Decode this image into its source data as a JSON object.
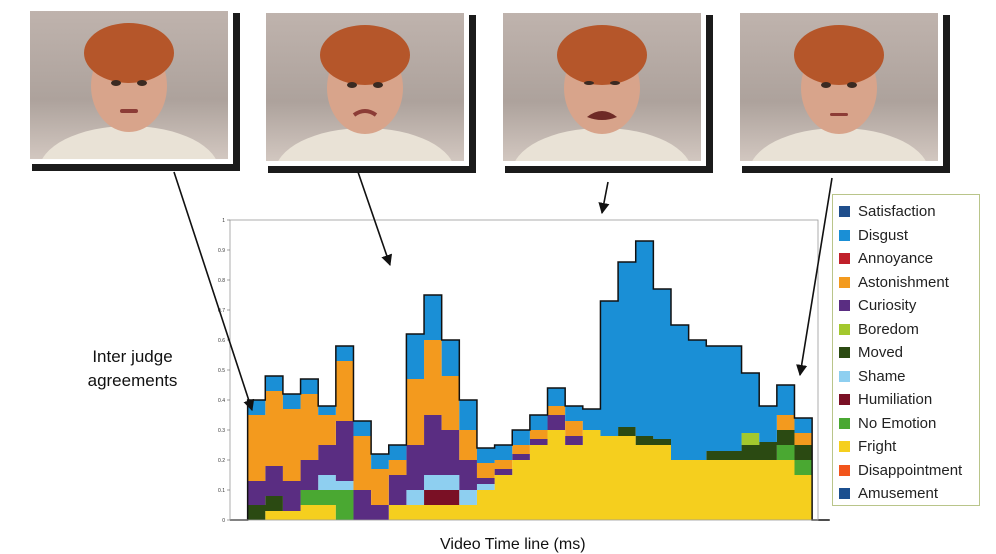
{
  "side_label": {
    "line1": "Inter judge",
    "line2": "agreements"
  },
  "x_axis_label": "Video Time line (ms)",
  "photos": [
    {
      "icon": "face-photo-icon"
    },
    {
      "icon": "face-photo-icon"
    },
    {
      "icon": "face-photo-icon"
    },
    {
      "icon": "face-photo-icon"
    }
  ],
  "chart_data": {
    "type": "area",
    "stacked": true,
    "step": true,
    "ylim": [
      0,
      1
    ],
    "yticks": [
      "0",
      "0.1",
      "0.2",
      "0.3",
      "0.4",
      "0.5",
      "0.6",
      "0.7",
      "0.8",
      "0.9",
      "1"
    ],
    "xlabel": "Video Time line (ms)",
    "ylabel": "",
    "legend_position": "right",
    "x": [
      0,
      0.03,
      0.06,
      0.09,
      0.12,
      0.15,
      0.18,
      0.21,
      0.24,
      0.27,
      0.3,
      0.33,
      0.36,
      0.39,
      0.42,
      0.45,
      0.48,
      0.51,
      0.54,
      0.57,
      0.6,
      0.63,
      0.66,
      0.69,
      0.72,
      0.75,
      0.78,
      0.81,
      0.84,
      0.87,
      0.9,
      0.93,
      0.96,
      0.99
    ],
    "series": [
      {
        "name": "Satisfaction",
        "color": "#1f4e8c",
        "values": [
          0,
          0,
          0,
          0,
          0,
          0,
          0,
          0,
          0,
          0,
          0,
          0,
          0,
          0,
          0,
          0,
          0,
          0,
          0,
          0,
          0,
          0,
          0,
          0,
          0,
          0,
          0,
          0,
          0,
          0,
          0,
          0,
          0,
          0
        ]
      },
      {
        "name": "Disgust",
        "color": "#1a8fd6",
        "values": [
          0,
          0.05,
          0.05,
          0.05,
          0.05,
          0.03,
          0.05,
          0.05,
          0.05,
          0.05,
          0.15,
          0.15,
          0.12,
          0.1,
          0.05,
          0.05,
          0.05,
          0.05,
          0.06,
          0.05,
          0.07,
          0.45,
          0.55,
          0.65,
          0.5,
          0.45,
          0.4,
          0.35,
          0.35,
          0.2,
          0.12,
          0.1,
          0.05,
          0
        ]
      },
      {
        "name": "Annoyance",
        "color": "#c0202a",
        "values": [
          0,
          0,
          0,
          0,
          0,
          0,
          0,
          0,
          0,
          0,
          0,
          0,
          0,
          0,
          0,
          0,
          0,
          0,
          0,
          0,
          0,
          0,
          0,
          0,
          0,
          0,
          0,
          0,
          0,
          0,
          0,
          0,
          0,
          0
        ]
      },
      {
        "name": "Astonishment",
        "color": "#f39a1e",
        "values": [
          0,
          0.22,
          0.25,
          0.24,
          0.22,
          0.1,
          0.2,
          0.18,
          0.12,
          0.05,
          0.22,
          0.25,
          0.18,
          0.1,
          0.05,
          0.03,
          0.03,
          0.03,
          0.03,
          0.05,
          0,
          0,
          0,
          0,
          0,
          0,
          0,
          0,
          0,
          0,
          0,
          0.05,
          0.04,
          0
        ]
      },
      {
        "name": "Curiosity",
        "color": "#5a2d82",
        "values": [
          0,
          0.08,
          0.1,
          0.1,
          0.1,
          0.1,
          0.2,
          0.1,
          0.05,
          0.1,
          0.15,
          0.2,
          0.15,
          0.1,
          0.02,
          0.02,
          0.02,
          0.02,
          0.05,
          0.03,
          0,
          0,
          0,
          0,
          0,
          0,
          0,
          0,
          0,
          0,
          0,
          0,
          0,
          0
        ]
      },
      {
        "name": "Boredom",
        "color": "#a3c82e",
        "values": [
          0,
          0,
          0,
          0,
          0,
          0,
          0,
          0,
          0,
          0,
          0,
          0,
          0,
          0,
          0,
          0,
          0,
          0,
          0,
          0,
          0,
          0,
          0,
          0,
          0,
          0,
          0,
          0,
          0,
          0.04,
          0,
          0,
          0,
          0
        ]
      },
      {
        "name": "Moved",
        "color": "#2b4a12",
        "values": [
          0,
          0.05,
          0.05,
          0,
          0,
          0,
          0,
          0,
          0,
          0,
          0,
          0,
          0,
          0,
          0,
          0,
          0,
          0,
          0,
          0,
          0,
          0,
          0.03,
          0.03,
          0.02,
          0,
          0,
          0.03,
          0.03,
          0.05,
          0.06,
          0.05,
          0.05,
          0
        ]
      },
      {
        "name": "Shame",
        "color": "#8ecff0",
        "values": [
          0,
          0,
          0,
          0,
          0,
          0.05,
          0.03,
          0,
          0,
          0,
          0.05,
          0.05,
          0.05,
          0.05,
          0.02,
          0,
          0,
          0,
          0,
          0,
          0,
          0,
          0,
          0,
          0,
          0,
          0,
          0,
          0,
          0,
          0,
          0,
          0,
          0
        ]
      },
      {
        "name": "Humiliation",
        "color": "#7a1025",
        "values": [
          0,
          0,
          0,
          0,
          0,
          0,
          0,
          0,
          0,
          0,
          0,
          0.05,
          0.05,
          0,
          0,
          0,
          0,
          0,
          0,
          0,
          0,
          0,
          0,
          0,
          0,
          0,
          0,
          0,
          0,
          0,
          0,
          0,
          0,
          0
        ]
      },
      {
        "name": "No Emotion",
        "color": "#4aa832",
        "values": [
          0,
          0,
          0,
          0,
          0.05,
          0.05,
          0.1,
          0,
          0,
          0,
          0,
          0,
          0,
          0,
          0,
          0,
          0,
          0,
          0,
          0,
          0,
          0,
          0,
          0,
          0,
          0,
          0,
          0,
          0,
          0,
          0,
          0.05,
          0.05,
          0
        ]
      },
      {
        "name": "Fright",
        "color": "#f5cf1e",
        "values": [
          0,
          0,
          0.03,
          0.03,
          0.05,
          0.05,
          0,
          0,
          0,
          0.05,
          0.05,
          0.05,
          0.05,
          0.05,
          0.1,
          0.15,
          0.2,
          0.25,
          0.3,
          0.25,
          0.3,
          0.28,
          0.28,
          0.25,
          0.25,
          0.2,
          0.2,
          0.2,
          0.2,
          0.2,
          0.2,
          0.2,
          0.15,
          0
        ]
      },
      {
        "name": "Disappointment",
        "color": "#f2551c",
        "values": [
          0,
          0,
          0,
          0,
          0,
          0,
          0,
          0,
          0,
          0,
          0,
          0,
          0,
          0,
          0,
          0,
          0,
          0,
          0,
          0,
          0,
          0,
          0,
          0,
          0,
          0,
          0,
          0,
          0,
          0,
          0,
          0,
          0,
          0
        ]
      },
      {
        "name": "Amusement",
        "color": "#1b4f8f",
        "values": [
          0,
          0,
          0,
          0,
          0,
          0,
          0,
          0,
          0,
          0,
          0,
          0,
          0,
          0,
          0,
          0,
          0,
          0,
          0,
          0,
          0,
          0,
          0,
          0,
          0,
          0,
          0,
          0,
          0,
          0,
          0,
          0,
          0,
          0
        ]
      }
    ]
  }
}
